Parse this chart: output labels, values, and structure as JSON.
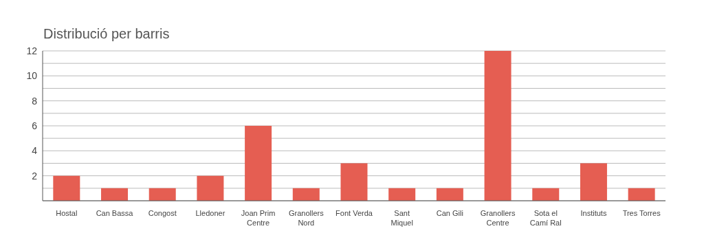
{
  "chart_data": {
    "type": "bar",
    "title": "Distribució per barris",
    "categories": [
      "Hostal",
      "Can Bassa",
      "Congost",
      "Lledoner",
      "Joan Prim\nCentre",
      "Granollers\nNord",
      "Font Verda",
      "Sant\nMiquel",
      "Can Gili",
      "Granollers\nCentre",
      "Sota el\nCamí Ral",
      "Instituts",
      "Tres Torres"
    ],
    "values": [
      2,
      1,
      1,
      2,
      6,
      1,
      3,
      1,
      1,
      12,
      1,
      3,
      1
    ],
    "color": "#e55e52",
    "ylim": [
      0,
      12
    ],
    "yticks": [
      {
        "value": 1,
        "label": null
      },
      2,
      {
        "value": 3,
        "label": null
      },
      4,
      {
        "value": 5,
        "label": null
      },
      6,
      {
        "value": 7,
        "label": null
      },
      8,
      {
        "value": 9,
        "label": null
      },
      10,
      {
        "value": 11,
        "label": null
      },
      12
    ],
    "grid": "y"
  }
}
